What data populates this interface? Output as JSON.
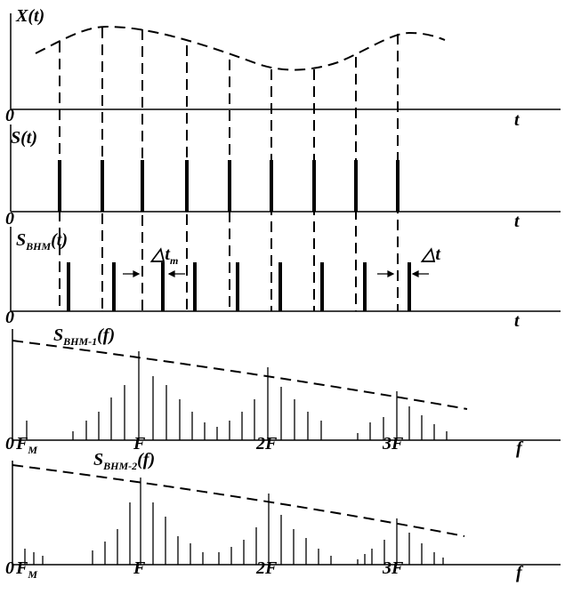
{
  "panels": [
    {
      "label": {
        "main": "X(t)"
      },
      "origin": "0",
      "axis": "t"
    },
    {
      "label": {
        "main": "S(t)"
      },
      "origin": "0",
      "axis": "t"
    },
    {
      "label": {
        "main": "S",
        "sub": "BHM",
        "suffix": "(t)"
      },
      "origin": "0",
      "axis": "t",
      "annotations": [
        {
          "main": "△t",
          "sub": "m"
        },
        {
          "main": "△t"
        }
      ]
    },
    {
      "label": {
        "main": "S",
        "sub": "BHM-1",
        "suffix": "(f)"
      },
      "origin": "0",
      "axis": "f",
      "ticks": [
        {
          "main": "F",
          "sub": "M"
        },
        {
          "main": "F"
        },
        {
          "main": "2F"
        },
        {
          "main": "3F"
        }
      ]
    },
    {
      "label": {
        "main": "S",
        "sub": "BHM-2",
        "suffix": "(f)"
      },
      "origin": "0",
      "axis": "f",
      "ticks": [
        {
          "main": "F",
          "sub": "M"
        },
        {
          "main": "F"
        },
        {
          "main": "2F"
        },
        {
          "main": "3F"
        }
      ]
    }
  ]
}
